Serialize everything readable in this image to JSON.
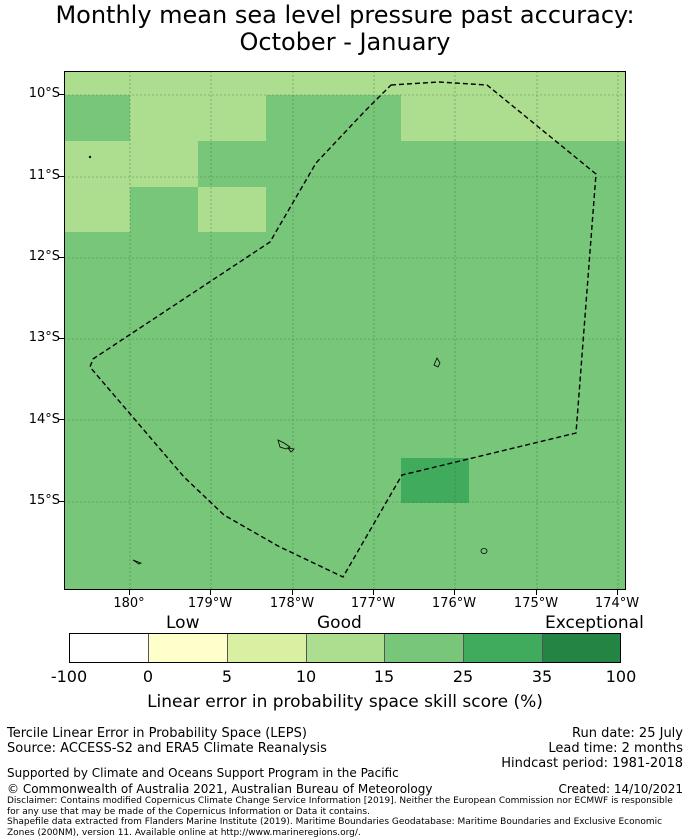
{
  "title_line1": "Monthly mean sea level pressure past accuracy:",
  "title_line2": "October - January",
  "lat_labels": [
    "10°S",
    "11°S",
    "12°S",
    "13°S",
    "14°S",
    "15°S"
  ],
  "lon_labels": [
    "180°",
    "179°W",
    "178°W",
    "177°W",
    "176°W",
    "175°W",
    "174°W"
  ],
  "colorbar": {
    "categories": [
      "Low",
      "Good",
      "Exceptional"
    ],
    "tick_labels": [
      "-100",
      "0",
      "5",
      "10",
      "15",
      "25",
      "35",
      "100"
    ],
    "colors": [
      "#ffffff",
      "#ffffcc",
      "#d9f0a3",
      "#addd8e",
      "#78c679",
      "#41ab5d",
      "#238443"
    ],
    "title": "Linear error in probability space skill score (%)"
  },
  "map_colors": {
    "light": "#addd8e",
    "medium": "#78c679",
    "dark": "#41ab5d"
  },
  "info": {
    "method": "Tercile Linear Error in Probability Space (LEPS)",
    "source": "Source: ACCESS-S2 and ERA5 Climate Reanalysis",
    "run_date": "Run date: 25 July",
    "lead_time": "Lead time: 2 months",
    "hindcast": "Hindcast period: 1981-2018",
    "support": "Supported by Climate and Oceans Support Program in the Pacific",
    "copyright": "© Commonwealth of Australia 2021, Australian Bureau of Meteorology",
    "created": "Created: 14/10/2021",
    "disclaimer1": "Disclaimer: Contains modified Copernicus Climate Change Service Information [2019]. Neither the European Commission nor ECMWF is responsible for any use that may be made of the Copernicus Information or Data it contains.",
    "disclaimer2": "Shapefile data extracted from Flanders Marine Institute (2019). Maritime Boundaries Geodatabase: Maritime Boundaries and Exclusive Economic Zones (200NM), version 11. Available online at http://www.marineregions.org/."
  }
}
